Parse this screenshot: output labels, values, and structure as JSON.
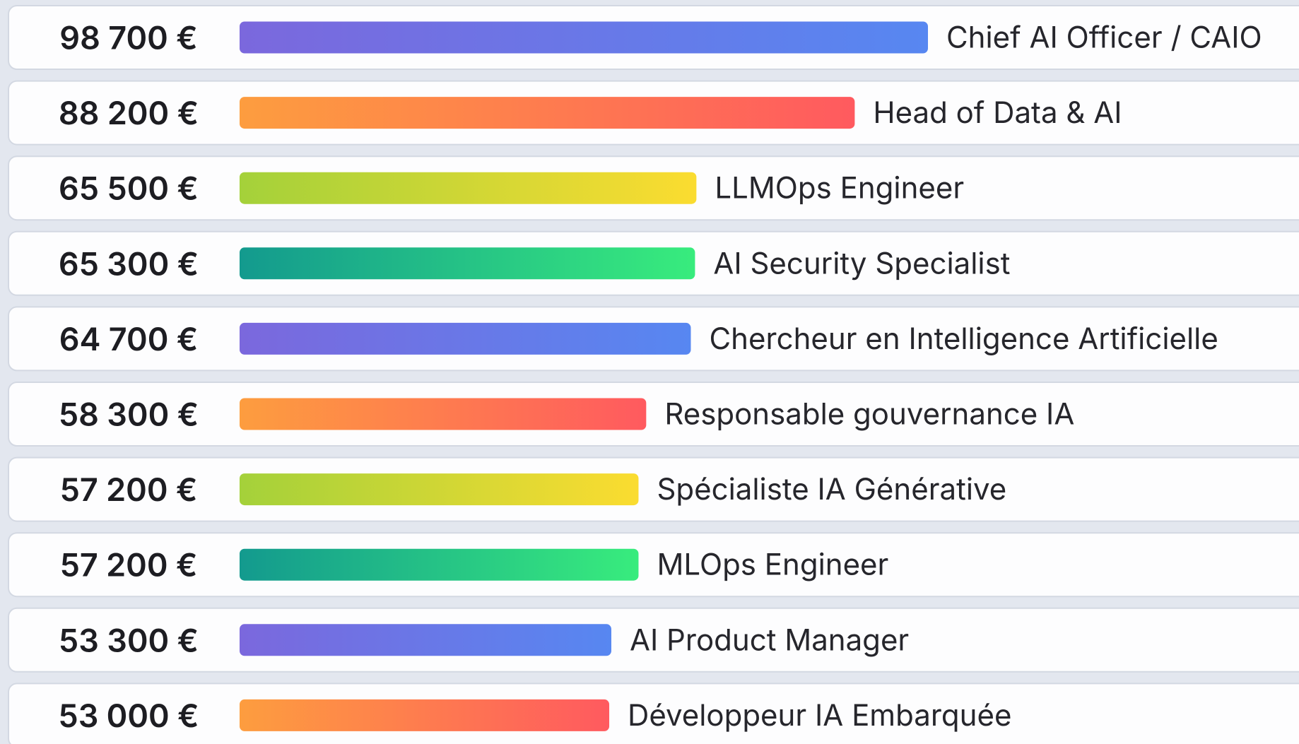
{
  "chart_data": {
    "type": "bar",
    "orientation": "horizontal",
    "categories": [
      "Chief AI Officer / CAIO",
      "Head of Data & AI",
      "LLMOps Engineer",
      "AI Security Specialist",
      "Chercheur en Intelligence Artificielle",
      "Responsable gouvernance IA",
      "Spécialiste IA Générative",
      "MLOps Engineer",
      "AI Product Manager",
      "Développeur IA Embarquée"
    ],
    "values": [
      98700,
      88200,
      65500,
      65300,
      64700,
      58300,
      57200,
      57200,
      53300,
      53000
    ],
    "value_labels": [
      "98 700 €",
      "88 200 €",
      "65 500 €",
      "65 300 €",
      "64 700 €",
      "58 300 €",
      "57 200 €",
      "57 200 €",
      "53 300 €",
      "53 000 €"
    ],
    "gradients": [
      [
        "#7b68dd",
        "#5787f1"
      ],
      [
        "#fd9d3f",
        "#ff5a5f"
      ],
      [
        "#a4d13a",
        "#fbdc30"
      ],
      [
        "#139a8e",
        "#38ec7d"
      ]
    ]
  }
}
